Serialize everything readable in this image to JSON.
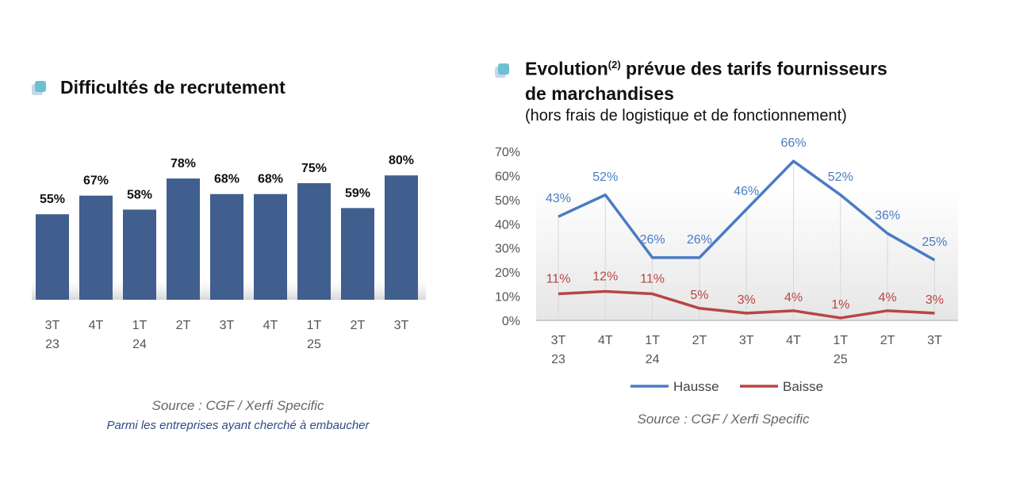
{
  "chart_data": [
    {
      "type": "bar",
      "title": "Difficultés de recrutement",
      "categories": [
        [
          "3T",
          "23"
        ],
        [
          "4T",
          ""
        ],
        [
          "1T",
          "24"
        ],
        [
          "2T",
          ""
        ],
        [
          "3T",
          ""
        ],
        [
          "4T",
          ""
        ],
        [
          "1T",
          "25"
        ],
        [
          "2T",
          ""
        ],
        [
          "3T",
          ""
        ]
      ],
      "values": [
        55,
        67,
        58,
        78,
        68,
        68,
        75,
        59,
        80
      ],
      "data_labels": [
        "55%",
        "67%",
        "58%",
        "78%",
        "68%",
        "68%",
        "75%",
        "59%",
        "80%"
      ],
      "ylim": [
        0,
        100
      ],
      "grid": false,
      "bar_color": "#405f8e",
      "source": "Source : CGF / Xerfi Specific",
      "note": "Parmi les entreprises ayant cherché à embaucher"
    },
    {
      "type": "line",
      "title_main": "Evolution",
      "title_sup": "(2)",
      "title_rest": " prévue des tarifs fournisseurs",
      "title_line2": "de marchandises",
      "subtitle": "(hors frais de logistique et de fonctionnement)",
      "categories": [
        [
          "3T",
          "23"
        ],
        [
          "4T",
          ""
        ],
        [
          "1T",
          "24"
        ],
        [
          "2T",
          ""
        ],
        [
          "3T",
          ""
        ],
        [
          "4T",
          ""
        ],
        [
          "1T",
          "25"
        ],
        [
          "2T",
          ""
        ],
        [
          "3T",
          ""
        ]
      ],
      "y_ticks": [
        "0%",
        "10%",
        "20%",
        "30%",
        "40%",
        "50%",
        "60%",
        "70%"
      ],
      "ylim": [
        0,
        70
      ],
      "series": [
        {
          "name": "Hausse",
          "color": "#4a7bc4",
          "values": [
            43,
            52,
            26,
            26,
            46,
            66,
            52,
            36,
            25
          ]
        },
        {
          "name": "Baisse",
          "color": "#b84545",
          "values": [
            11,
            12,
            11,
            5,
            3,
            4,
            1,
            4,
            3
          ]
        }
      ],
      "legend": "bottom",
      "source": "Source : CGF / Xerfi Specific"
    }
  ]
}
